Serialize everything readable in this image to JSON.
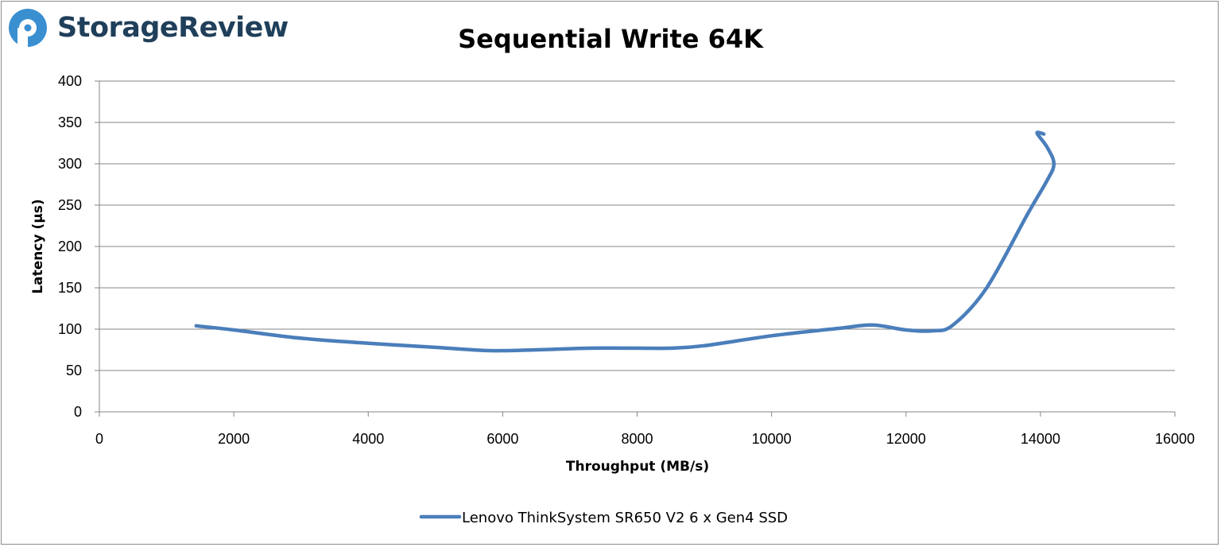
{
  "brand": {
    "name": "StorageReview",
    "accent": "#3a8fd0",
    "text_color": "#1f3f5a"
  },
  "chart_data": {
    "type": "line",
    "title": "Sequential Write 64K",
    "xlabel": "Throughput (MB/s)",
    "ylabel": "Latency (µs)",
    "xlim": [
      0,
      16000
    ],
    "ylim": [
      0,
      400
    ],
    "x_ticks": [
      0,
      2000,
      4000,
      6000,
      8000,
      10000,
      12000,
      14000,
      16000
    ],
    "y_ticks": [
      0,
      50,
      100,
      150,
      200,
      250,
      300,
      350,
      400
    ],
    "grid": true,
    "legend_position": "bottom",
    "series": [
      {
        "name": "Lenovo ThinkSystem SR650 V2 6 x Gen4 SSD",
        "color": "#4a7ebb",
        "x": [
          1440,
          2000,
          3000,
          4000,
          5000,
          5800,
          6500,
          7300,
          8000,
          8500,
          9000,
          10000,
          11000,
          11500,
          12000,
          12400,
          12700,
          13200,
          13800,
          14100,
          14200,
          14100,
          13950,
          14050
        ],
        "y": [
          104,
          99,
          89,
          83,
          78,
          74,
          75,
          77,
          77,
          77,
          80,
          92,
          101,
          105,
          99,
          98,
          105,
          150,
          238,
          280,
          300,
          320,
          337,
          336
        ]
      }
    ]
  }
}
